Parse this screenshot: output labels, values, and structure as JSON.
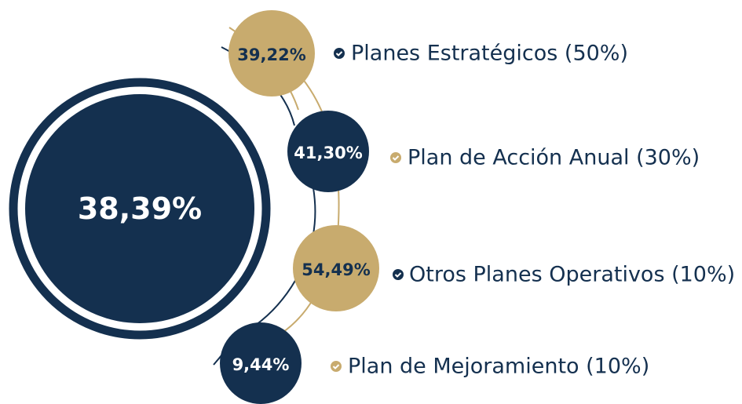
{
  "total": "38,39%",
  "items": [
    {
      "value": "39,22%",
      "label": "Planes Estratégicos (50%)"
    },
    {
      "value": "41,30%",
      "label": "Plan de Acción Anual (30%)"
    },
    {
      "value": "54,49%",
      "label": "Otros Planes Operativos (10%)"
    },
    {
      "value": "9,44%",
      "label": "Plan de Mejoramiento (10%)"
    }
  ]
}
